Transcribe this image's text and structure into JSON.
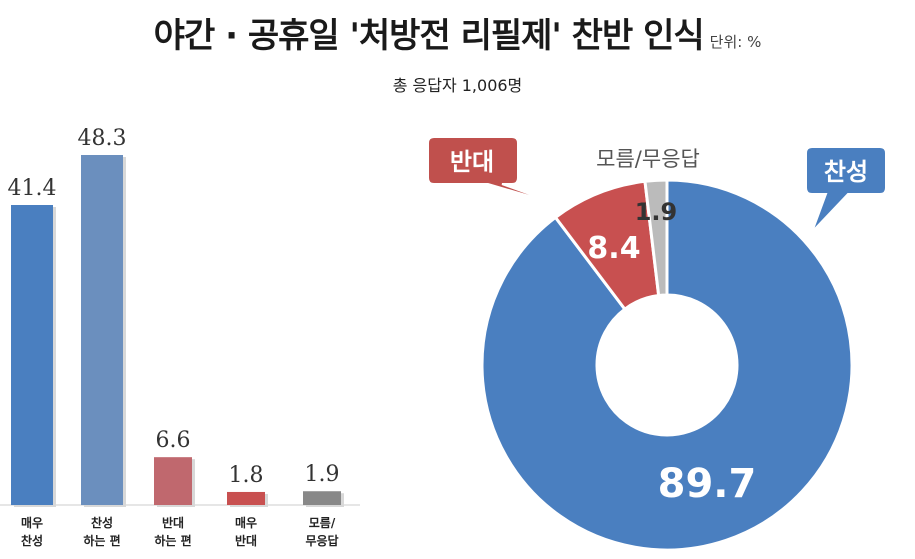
{
  "title": "야간 · 공휴일 '처방전 리필제' 찬반 인식",
  "unit": "단위: %",
  "subtitle": "총 응답자 1,006명",
  "colors": {
    "blue": "#4a7fc0",
    "blue_light": "#6b8fbe",
    "red": "#c85050",
    "red_light": "#c0686e",
    "gray": "#888888",
    "gray_light": "#bbbbbb"
  },
  "chart_data": [
    {
      "type": "bar",
      "categories": [
        [
          "매우",
          "찬성"
        ],
        [
          "찬성",
          "하는 편"
        ],
        [
          "반대",
          "하는 편"
        ],
        [
          "매우",
          "반대"
        ],
        [
          "모름/",
          "무응답"
        ]
      ],
      "values": [
        41.4,
        48.3,
        6.6,
        1.8,
        1.9
      ],
      "value_labels": [
        "41.4",
        "48.3",
        "6.6",
        "1.8",
        "1.9"
      ],
      "bar_colors": [
        "#4a7fc0",
        "#6b8fbe",
        "#c0686e",
        "#c85050",
        "#888888"
      ],
      "ylim": [
        0,
        50
      ]
    },
    {
      "type": "pie",
      "donut": true,
      "slices": [
        {
          "label": "찬성",
          "value": 89.7,
          "value_label": "89.7",
          "color": "#4a7fc0"
        },
        {
          "label": "반대",
          "value": 8.4,
          "value_label": "8.4",
          "color": "#c85050"
        },
        {
          "label": "모름/무응답",
          "value": 1.9,
          "value_label": "1.9",
          "color": "#bbbbbb"
        }
      ]
    }
  ]
}
